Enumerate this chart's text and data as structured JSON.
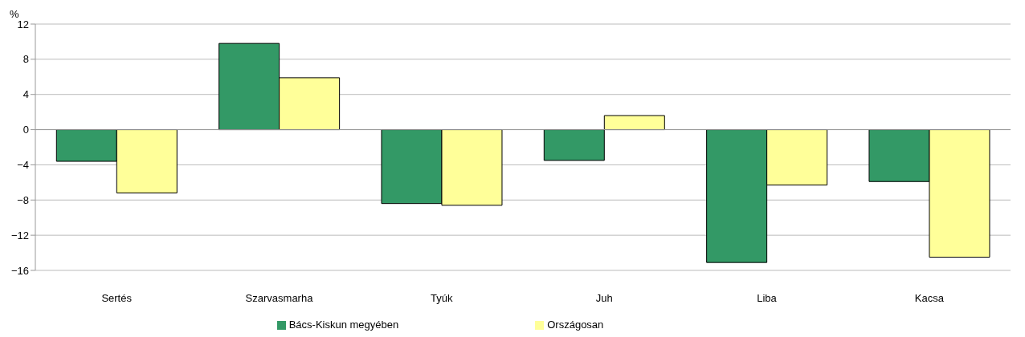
{
  "chart_data": {
    "type": "bar",
    "ylabel": "%",
    "categories": [
      "Sertés",
      "Szarvasmarha",
      "Tyúk",
      "Juh",
      "Liba",
      "Kacsa"
    ],
    "series": [
      {
        "name": "Bács-Kiskun megyében",
        "color": "#339966",
        "values": [
          -3.6,
          9.8,
          -8.4,
          -3.5,
          -15.1,
          -5.9
        ]
      },
      {
        "name": "Országosan",
        "color": "#ffff99",
        "values": [
          -7.2,
          5.9,
          -8.6,
          1.6,
          -6.3,
          -14.5
        ]
      }
    ],
    "ylim": [
      -16,
      12
    ],
    "yticks": [
      -16,
      -12,
      -8,
      -4,
      0,
      4,
      8,
      12
    ],
    "grid": "y",
    "legend": "bottom"
  }
}
